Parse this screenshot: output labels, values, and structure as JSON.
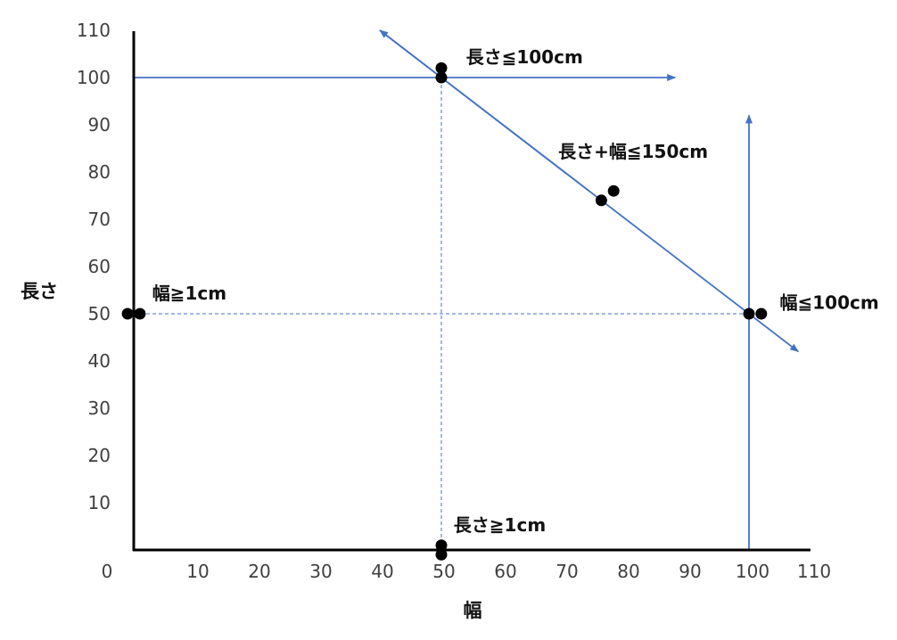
{
  "chart_data": {
    "type": "scatter",
    "xlabel": "幅",
    "ylabel": "長さ",
    "xlim": [
      0,
      110
    ],
    "ylim": [
      0,
      110
    ],
    "x_ticks": [
      "0",
      "10",
      "20",
      "30",
      "40",
      "50",
      "60",
      "70",
      "80",
      "90",
      "100",
      "110"
    ],
    "y_ticks": [
      "10",
      "20",
      "30",
      "40",
      "50",
      "60",
      "70",
      "80",
      "90",
      "100",
      "110"
    ],
    "grid": false,
    "colors": {
      "line": "#4472C4",
      "point": "#000000",
      "axis": "#000000"
    },
    "boundaries": [
      {
        "from": [
          0,
          100
        ],
        "to": [
          88,
          100
        ]
      },
      {
        "from": [
          100,
          0
        ],
        "to": [
          100,
          92
        ]
      },
      {
        "from": [
          40,
          110
        ],
        "to": [
          108,
          42
        ]
      }
    ],
    "guides": [
      {
        "from": [
          0,
          50
        ],
        "to": [
          100,
          50
        ]
      },
      {
        "from": [
          50,
          0
        ],
        "to": [
          50,
          100
        ]
      }
    ],
    "points": [
      {
        "x": 50,
        "y": 102
      },
      {
        "x": 50,
        "y": 100
      },
      {
        "x": 76,
        "y": 74
      },
      {
        "x": 78,
        "y": 76
      },
      {
        "x": -1,
        "y": 50
      },
      {
        "x": 1,
        "y": 50
      },
      {
        "x": 100,
        "y": 50
      },
      {
        "x": 102,
        "y": 50
      },
      {
        "x": 50,
        "y": 1
      },
      {
        "x": 50,
        "y": -1
      }
    ],
    "annotations": [
      {
        "text": "長さ≦100cm",
        "x": 54,
        "y": 103
      },
      {
        "text": "長さ+幅≦150cm",
        "x": 69,
        "y": 83
      },
      {
        "text": "幅≧1cm",
        "x": 3,
        "y": 53
      },
      {
        "text": "幅≦100cm",
        "x": 105,
        "y": 51
      },
      {
        "text": "長さ≧1cm",
        "x": 52,
        "y": 4
      }
    ]
  }
}
